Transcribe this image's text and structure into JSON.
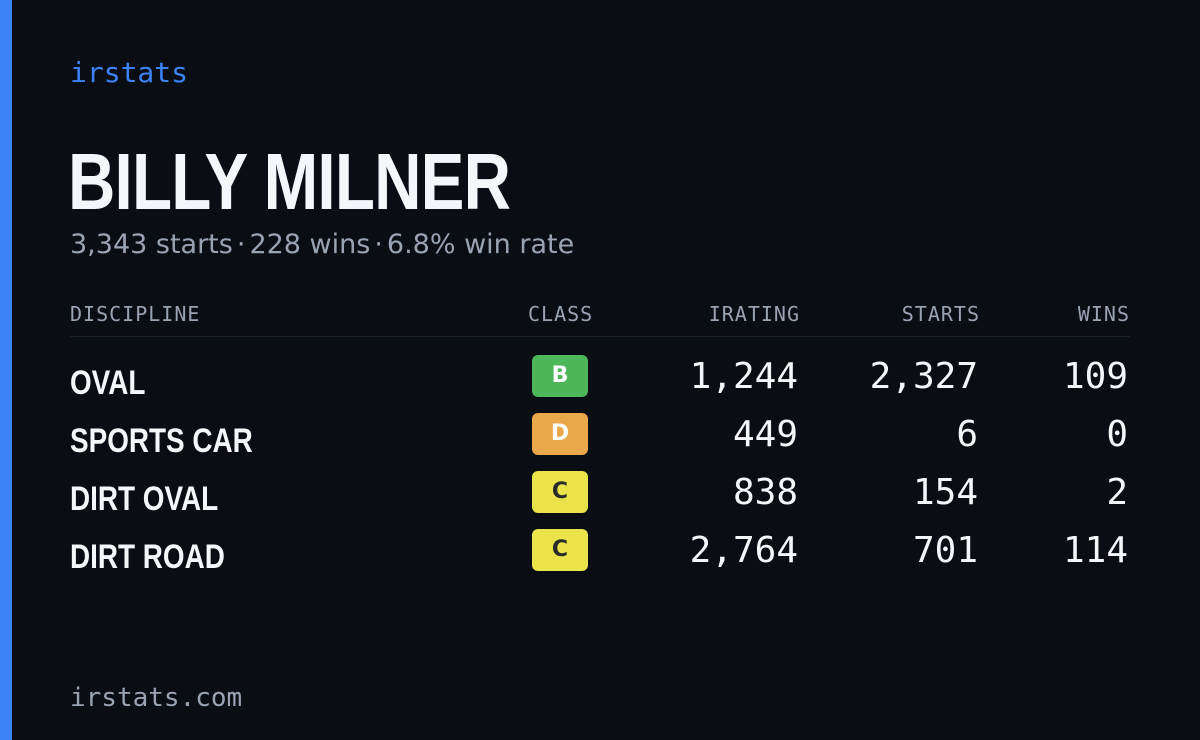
{
  "brand": {
    "name": "irstats",
    "accent_color": "#3b82f6"
  },
  "driver": {
    "name": "BILLY MILNER",
    "summary": {
      "starts": "3,343 starts",
      "wins": "228 wins",
      "win_rate": "6.8% win rate",
      "separator": "·"
    }
  },
  "table": {
    "headers": {
      "discipline": "DISCIPLINE",
      "class": "CLASS",
      "irating": "IRATING",
      "starts": "STARTS",
      "wins": "WINS"
    },
    "rows": [
      {
        "discipline": "OVAL",
        "class": "B",
        "class_bg": "#4cb85a",
        "class_fg": "#ffffff",
        "irating": "1,244",
        "starts": "2,327",
        "wins": "109"
      },
      {
        "discipline": "SPORTS CAR",
        "class": "D",
        "class_bg": "#e9a84a",
        "class_fg": "#ffffff",
        "irating": "449",
        "starts": "6",
        "wins": "0"
      },
      {
        "discipline": "DIRT OVAL",
        "class": "C",
        "class_bg": "#ebe34a",
        "class_fg": "#2a2a2a",
        "irating": "838",
        "starts": "154",
        "wins": "2"
      },
      {
        "discipline": "DIRT ROAD",
        "class": "C",
        "class_bg": "#ebe34a",
        "class_fg": "#2a2a2a",
        "irating": "2,764",
        "starts": "701",
        "wins": "114"
      }
    ]
  },
  "footer": {
    "url": "irstats.com"
  }
}
